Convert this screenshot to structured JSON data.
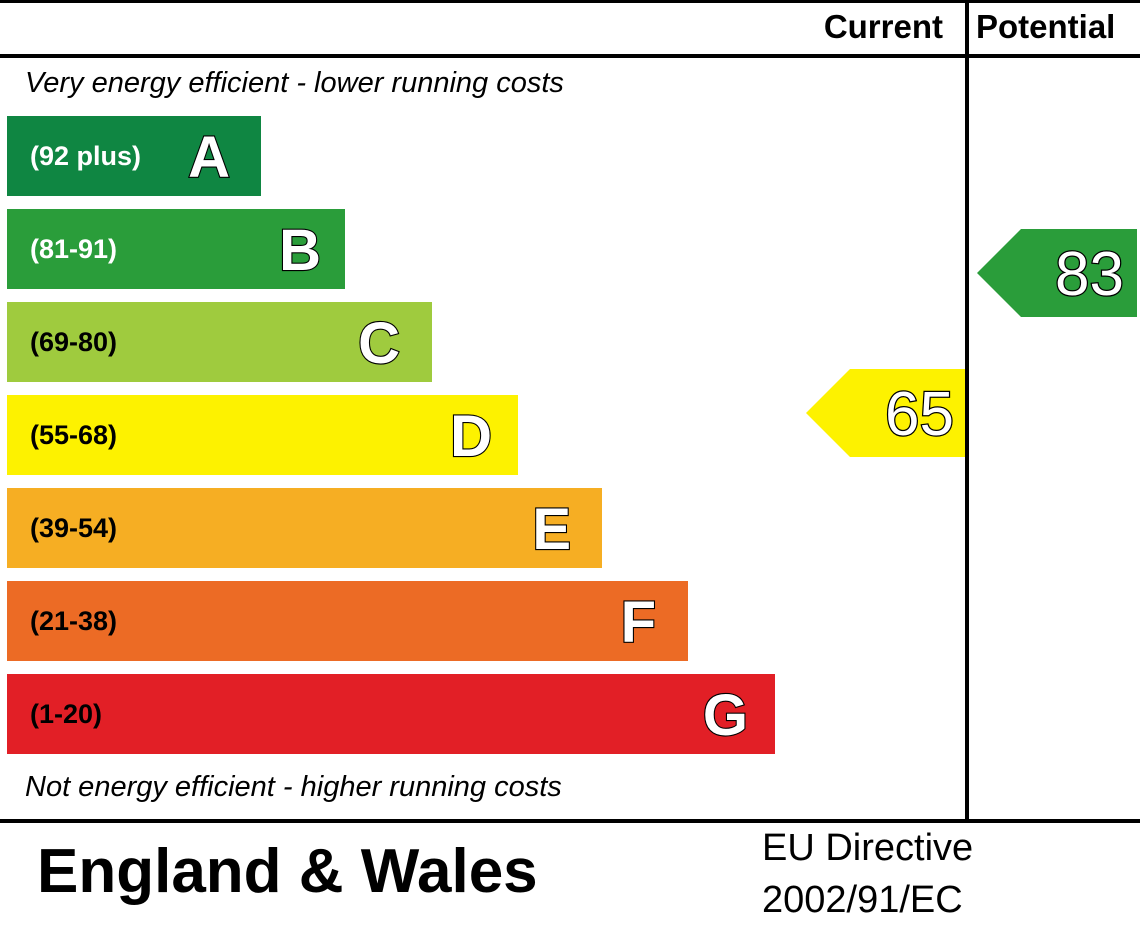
{
  "chart_data": {
    "type": "bar",
    "columns": {
      "current": "Current",
      "potential": "Potential"
    },
    "top_note": "Very energy efficient - lower running costs",
    "bottom_note": "Not energy efficient - higher running costs",
    "bands": [
      {
        "letter": "A",
        "range": "(92 plus)",
        "color": "#0f8642",
        "text_color": "#ffffff"
      },
      {
        "letter": "B",
        "range": "(81-91)",
        "color": "#2a9d3a",
        "text_color": "#ffffff"
      },
      {
        "letter": "C",
        "range": "(69-80)",
        "color": "#9fcb3e",
        "text_color": "#000000"
      },
      {
        "letter": "D",
        "range": "(55-68)",
        "color": "#fdf200",
        "text_color": "#000000"
      },
      {
        "letter": "E",
        "range": "(39-54)",
        "color": "#f6ae23",
        "text_color": "#000000"
      },
      {
        "letter": "F",
        "range": "(21-38)",
        "color": "#ec6b25",
        "text_color": "#000000"
      },
      {
        "letter": "G",
        "range": "(1-20)",
        "color": "#e21f26",
        "text_color": "#000000"
      }
    ],
    "ratings": {
      "current": {
        "value": 65,
        "label": "65",
        "band": "D",
        "color": "#fdf200"
      },
      "potential": {
        "value": 83,
        "label": "83",
        "band": "B",
        "color": "#2a9d3a"
      }
    },
    "region": "England & Wales",
    "directive": [
      "EU Directive",
      "2002/91/EC"
    ]
  }
}
